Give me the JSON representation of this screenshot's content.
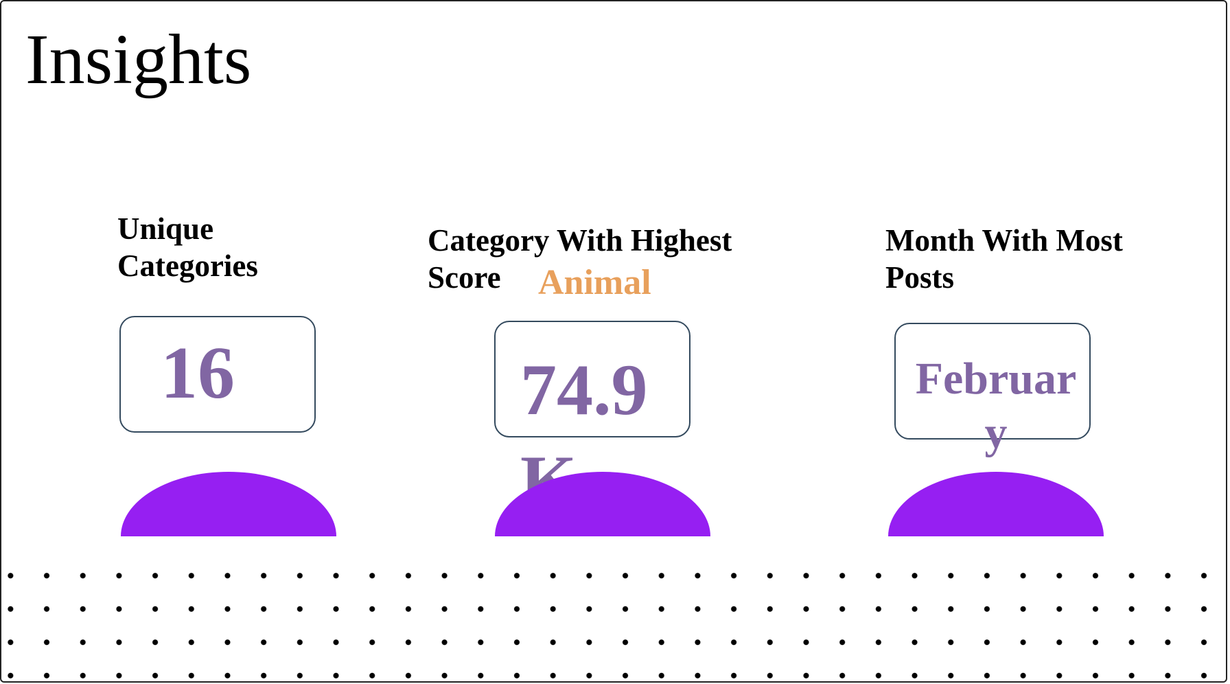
{
  "page": {
    "title": "Insights"
  },
  "cards": [
    {
      "heading": "Unique Categories",
      "value": "16"
    },
    {
      "heading": "Category With Highest Score",
      "category": "Animal",
      "value": "74.9K"
    },
    {
      "heading": "Month With Most Posts",
      "value": "February"
    }
  ],
  "colors": {
    "value_text": "#8166a3",
    "accent_text": "#e8a05c",
    "dome": "#961ff2",
    "box_border": "#344a5e"
  }
}
